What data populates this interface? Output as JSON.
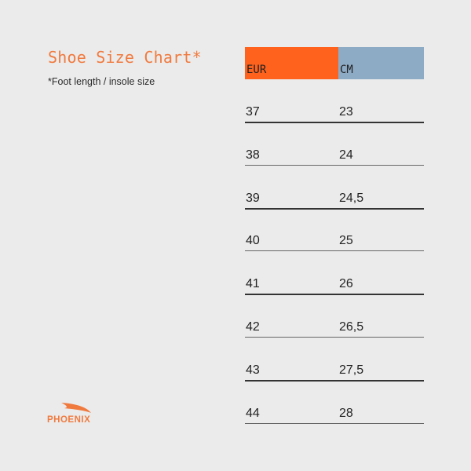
{
  "title": "Shoe Size Chart*",
  "subtitle": "*Foot length / insole size",
  "table": {
    "headers": [
      "EUR",
      "CM"
    ],
    "header_colors": [
      "#ff621d",
      "#8eabc6"
    ],
    "rows": [
      [
        "37",
        "23"
      ],
      [
        "38",
        "24"
      ],
      [
        "39",
        "24,5"
      ],
      [
        "40",
        "25"
      ],
      [
        "41",
        "26"
      ],
      [
        "42",
        "26,5"
      ],
      [
        "43",
        "27,5"
      ],
      [
        "44",
        "28"
      ]
    ]
  },
  "logo": {
    "text": "PHOENIX",
    "color": "#f07a3e"
  }
}
